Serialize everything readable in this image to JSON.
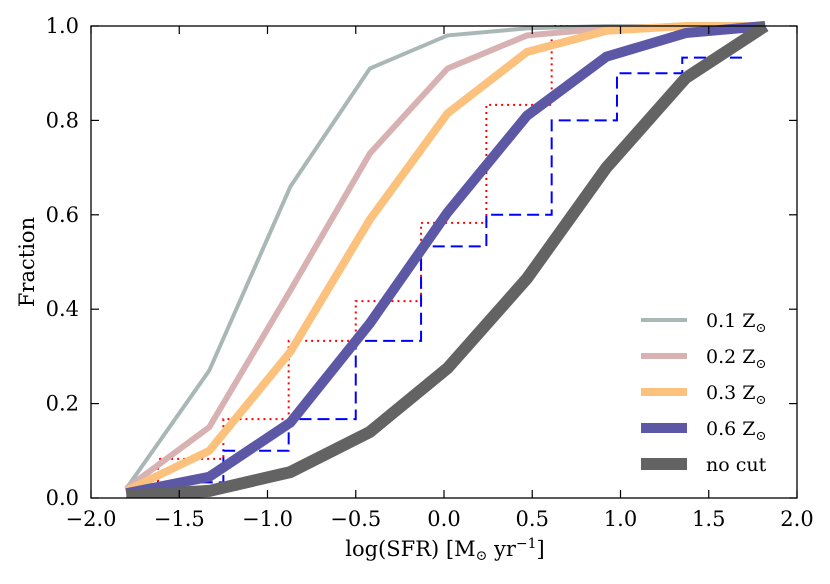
{
  "chart_data": {
    "type": "line",
    "title": "",
    "xlabel": "log(SFR) [M",
    "xlabel_sub": "⊙",
    "xlabel_tail": " yr",
    "xlabel_sup": "−1",
    "xlabel_close": "]",
    "ylabel": "Fraction",
    "xlim": [
      -2.0,
      2.0
    ],
    "ylim": [
      0.0,
      1.0
    ],
    "xticks": [
      -2.0,
      -1.5,
      -1.0,
      -0.5,
      0.0,
      0.5,
      1.0,
      1.5,
      2.0
    ],
    "xtick_labels": [
      "−2.0",
      "−1.5",
      "−1.0",
      "−0.5",
      "0.0",
      "0.5",
      "1.0",
      "1.5",
      "2.0"
    ],
    "yticks": [
      0.0,
      0.2,
      0.4,
      0.6,
      0.8,
      1.0
    ],
    "ytick_labels": [
      "0.0",
      "0.2",
      "0.4",
      "0.6",
      "0.8",
      "1.0"
    ],
    "legend_position": "lower right",
    "series": [
      {
        "name": "0.1 Z",
        "name_sub": "⊙",
        "color": "#a9b7b6",
        "width": 4,
        "x": [
          -1.8,
          -1.33,
          -0.87,
          -0.42,
          0.02,
          0.47,
          0.92,
          1.37,
          1.82
        ],
        "y": [
          0.02,
          0.27,
          0.66,
          0.91,
          0.98,
          0.995,
          1.0,
          1.0,
          1.0
        ]
      },
      {
        "name": "0.2 Z",
        "name_sub": "⊙",
        "color": "#d8b2b2",
        "width": 6,
        "x": [
          -1.8,
          -1.33,
          -0.87,
          -0.42,
          0.02,
          0.47,
          0.92,
          1.37,
          1.82
        ],
        "y": [
          0.02,
          0.15,
          0.44,
          0.73,
          0.91,
          0.98,
          0.995,
          1.0,
          1.0
        ]
      },
      {
        "name": "0.3 Z",
        "name_sub": "⊙",
        "color": "#fbc17d",
        "width": 8,
        "x": [
          -1.8,
          -1.33,
          -0.87,
          -0.42,
          0.02,
          0.47,
          0.92,
          1.37,
          1.82
        ],
        "y": [
          0.015,
          0.1,
          0.31,
          0.59,
          0.815,
          0.945,
          0.99,
          1.0,
          1.0
        ]
      },
      {
        "name": "0.6 Z",
        "name_sub": "⊙",
        "color": "#5d58a5",
        "width": 10,
        "x": [
          -1.8,
          -1.33,
          -0.87,
          -0.42,
          0.02,
          0.47,
          0.92,
          1.37,
          1.82
        ],
        "y": [
          0.01,
          0.045,
          0.16,
          0.37,
          0.605,
          0.81,
          0.935,
          0.985,
          1.0
        ]
      },
      {
        "name": "no cut",
        "name_sub": "",
        "color": "#636363",
        "width": 12,
        "x": [
          -1.8,
          -1.33,
          -0.87,
          -0.42,
          0.02,
          0.47,
          0.92,
          1.37,
          1.82
        ],
        "y": [
          0.005,
          0.015,
          0.055,
          0.14,
          0.275,
          0.465,
          0.7,
          0.89,
          1.0
        ]
      }
    ],
    "steps": [
      {
        "name": "dotted red step",
        "color": "#ff0000",
        "style": "dotted",
        "edges": [
          -1.8,
          -1.62,
          -1.25,
          -0.88,
          -0.5,
          -0.13,
          0.24,
          0.61,
          0.98,
          1.35,
          1.72
        ],
        "y": [
          0.0,
          0.083,
          0.167,
          0.333,
          0.417,
          0.583,
          0.833,
          1.0,
          1.0,
          1.0
        ]
      },
      {
        "name": "dashed blue step",
        "color": "#0000ff",
        "style": "dashed",
        "edges": [
          -1.8,
          -1.62,
          -1.25,
          -0.88,
          -0.5,
          -0.13,
          0.24,
          0.61,
          0.98,
          1.35,
          1.72
        ],
        "y": [
          0.0,
          0.033,
          0.1,
          0.167,
          0.333,
          0.533,
          0.6,
          0.8,
          0.9,
          0.933
        ]
      }
    ]
  }
}
